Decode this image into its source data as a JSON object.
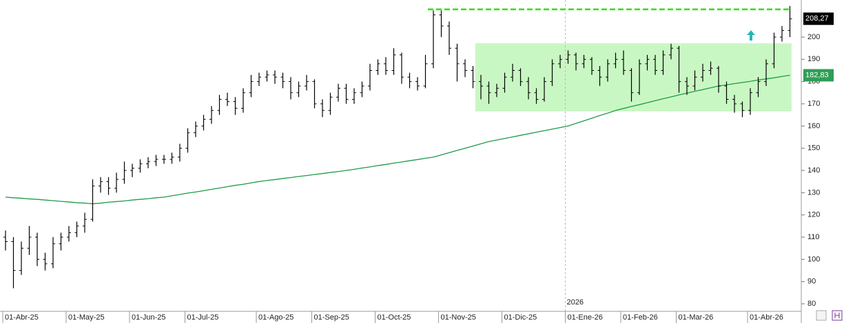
{
  "chart_data": {
    "type": "ohlc",
    "color": "#000000",
    "categories": [
      "01-Abr-25",
      null,
      null,
      null,
      null,
      null,
      null,
      null,
      "01-May-25",
      null,
      null,
      null,
      null,
      null,
      null,
      null,
      "01-Jun-25",
      null,
      null,
      null,
      null,
      null,
      null,
      "01-Jul-25",
      null,
      null,
      null,
      null,
      null,
      null,
      null,
      null,
      "01-Ago-25",
      null,
      null,
      null,
      null,
      null,
      null,
      "01-Sep-25",
      null,
      null,
      null,
      null,
      null,
      null,
      null,
      "01-Oct-25",
      null,
      null,
      null,
      null,
      null,
      null,
      null,
      "01-Nov-25",
      null,
      null,
      null,
      null,
      null,
      null,
      null,
      "01-Dic-25",
      null,
      null,
      null,
      null,
      null,
      null,
      null,
      "01-Ene-26",
      null,
      null,
      null,
      null,
      null,
      null,
      "01-Feb-26",
      null,
      null,
      null,
      null,
      null,
      null,
      "01-Mar-26",
      null,
      null,
      null,
      null,
      null,
      null,
      null,
      null,
      "01-Abr-26",
      null,
      null,
      null,
      null,
      null
    ],
    "open": [
      110,
      108,
      95,
      105,
      110,
      100,
      98,
      107,
      110,
      112,
      115,
      118,
      133,
      135,
      132,
      136,
      140,
      141,
      143,
      144,
      145,
      145,
      146,
      150,
      157,
      160,
      163,
      167,
      172,
      171,
      168,
      175,
      180,
      182,
      183,
      182,
      180,
      175,
      178,
      180,
      170,
      167,
      173,
      177,
      172,
      175,
      178,
      185,
      188,
      185,
      192,
      182,
      180,
      178,
      188,
      210,
      205,
      195,
      188,
      185,
      180,
      178,
      175,
      177,
      182,
      185,
      180,
      175,
      172,
      180,
      188,
      190,
      192,
      188,
      190,
      185,
      182,
      188,
      190,
      185,
      175,
      188,
      190,
      185,
      192,
      195,
      180,
      178,
      182,
      185,
      186,
      178,
      172,
      170,
      167,
      175,
      180,
      188,
      200,
      203
    ],
    "high": [
      113,
      110,
      108,
      115,
      112,
      103,
      110,
      112,
      115,
      117,
      121,
      136,
      137,
      137,
      139,
      144,
      143,
      145,
      146,
      147,
      147,
      148,
      152,
      159,
      162,
      165,
      169,
      174,
      175,
      173,
      177,
      183,
      184,
      185,
      185,
      184,
      182,
      180,
      183,
      181,
      172,
      175,
      179,
      179,
      177,
      180,
      188,
      190,
      191,
      195,
      193,
      184,
      182,
      192,
      212,
      212,
      207,
      197,
      190,
      187,
      183,
      180,
      179,
      184,
      188,
      186,
      182,
      177,
      182,
      190,
      192,
      194,
      193,
      192,
      191,
      187,
      190,
      193,
      194,
      186,
      190,
      192,
      192,
      194,
      197,
      196,
      182,
      185,
      188,
      189,
      187,
      180,
      174,
      171,
      177,
      182,
      190,
      202,
      205,
      214
    ],
    "low": [
      104,
      87,
      93,
      102,
      97,
      95,
      96,
      104,
      108,
      110,
      112,
      117,
      130,
      129,
      130,
      134,
      137,
      139,
      141,
      142,
      143,
      143,
      144,
      148,
      155,
      158,
      161,
      165,
      169,
      165,
      166,
      173,
      178,
      180,
      179,
      177,
      172,
      173,
      176,
      168,
      164,
      165,
      171,
      170,
      170,
      173,
      176,
      183,
      183,
      183,
      179,
      177,
      176,
      177,
      186,
      200,
      192,
      180,
      182,
      177,
      172,
      170,
      173,
      175,
      180,
      178,
      172,
      170,
      171,
      178,
      186,
      188,
      185,
      186,
      183,
      178,
      180,
      186,
      183,
      171,
      174,
      185,
      183,
      183,
      190,
      175,
      174,
      176,
      180,
      183,
      175,
      170,
      166,
      164,
      165,
      173,
      178,
      186,
      198,
      200
    ],
    "close": [
      108,
      95,
      105,
      110,
      100,
      98,
      107,
      110,
      112,
      115,
      118,
      133,
      135,
      132,
      136,
      140,
      141,
      143,
      144,
      145,
      145,
      146,
      150,
      157,
      160,
      163,
      167,
      172,
      171,
      168,
      175,
      180,
      182,
      183,
      182,
      180,
      175,
      178,
      180,
      170,
      167,
      173,
      177,
      172,
      175,
      178,
      185,
      188,
      185,
      192,
      182,
      180,
      178,
      188,
      210,
      205,
      195,
      188,
      185,
      180,
      178,
      175,
      177,
      182,
      185,
      180,
      175,
      172,
      180,
      188,
      190,
      192,
      188,
      190,
      185,
      182,
      188,
      190,
      185,
      175,
      188,
      190,
      185,
      192,
      195,
      180,
      178,
      182,
      185,
      186,
      178,
      172,
      170,
      167,
      175,
      180,
      188,
      200,
      203,
      208.27
    ],
    "moving_average": {
      "color": "#1e9b45",
      "values": [
        128,
        127.7,
        127.5,
        127.2,
        127,
        126.7,
        126.4,
        126.1,
        125.8,
        125.5,
        125.3,
        125,
        125.3,
        125.7,
        126,
        126.3,
        126.7,
        127,
        127.3,
        127.7,
        128,
        128.6,
        129.2,
        129.8,
        130.3,
        130.9,
        131.5,
        132.1,
        132.7,
        133.3,
        133.8,
        134.4,
        135,
        135.5,
        135.9,
        136.4,
        136.8,
        137.3,
        137.7,
        138.2,
        138.6,
        139.1,
        139.5,
        140,
        140.5,
        141.1,
        141.6,
        142.2,
        142.7,
        143.3,
        143.8,
        144.4,
        144.9,
        145.5,
        146,
        147,
        148,
        149,
        150,
        151,
        152,
        153,
        153.7,
        154.4,
        155.1,
        155.8,
        156.5,
        157.2,
        157.9,
        158.6,
        159.3,
        160,
        161.2,
        162.3,
        163.5,
        164.7,
        165.8,
        167,
        167.9,
        168.8,
        169.6,
        170.5,
        171.4,
        172.3,
        173.1,
        174,
        174.8,
        175.6,
        176.4,
        177.2,
        178,
        178.5,
        179.1,
        179.6,
        180.1,
        180.7,
        181.2,
        181.7,
        182.3,
        182.83
      ]
    },
    "resistance": {
      "value": 212.5,
      "color": "#33dd11"
    },
    "range_box": {
      "low": 166.6,
      "high": 197.2,
      "color": "#c9f7c3"
    },
    "price_labels": [
      {
        "value": 208.27,
        "label": "208,27",
        "color": "#000000"
      },
      {
        "value": 182.83,
        "label": "182,83",
        "color": "#2e9e55"
      }
    ],
    "year_label": "2026",
    "ylim": [
      76,
      216.7
    ],
    "yticks": [
      80,
      90,
      100,
      110,
      120,
      130,
      140,
      150,
      160,
      170,
      180,
      190,
      200
    ]
  }
}
